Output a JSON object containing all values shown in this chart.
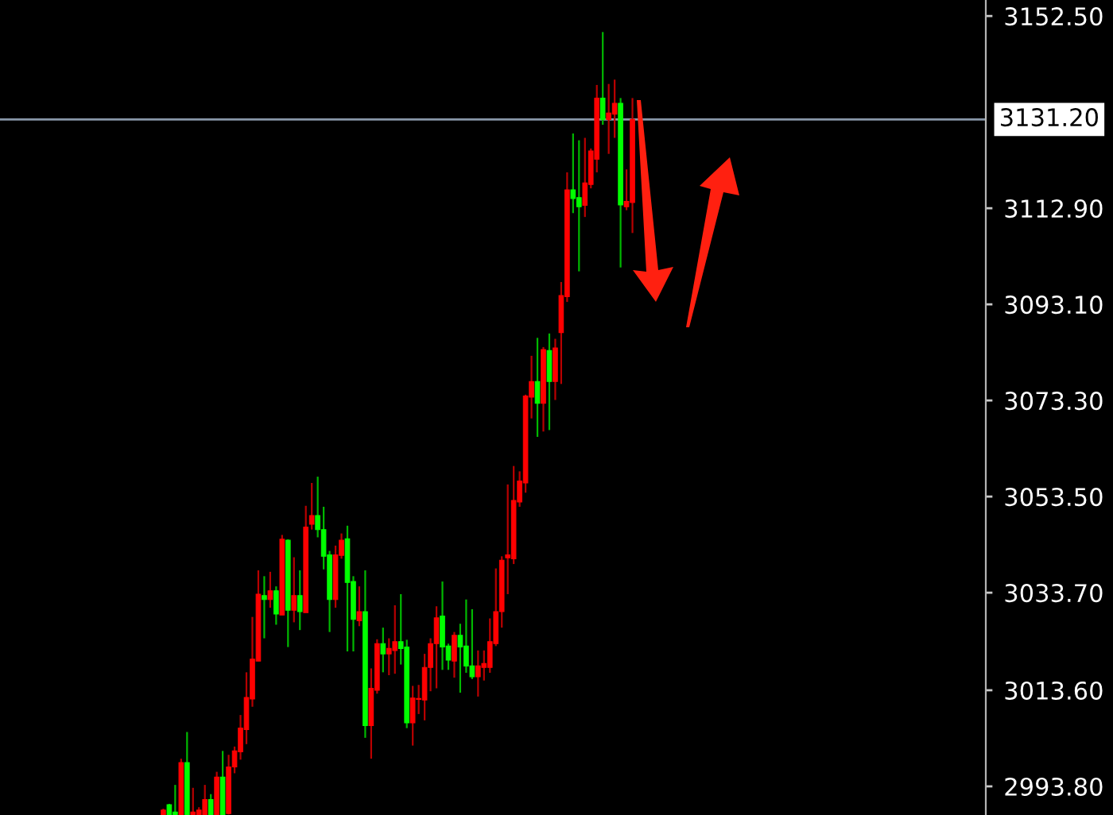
{
  "chart_data": {
    "type": "candlestick",
    "categories": [
      null,
      null,
      null,
      null,
      null,
      null,
      null,
      null,
      null,
      null,
      null,
      null,
      null,
      null,
      null,
      null,
      null,
      null,
      null,
      null,
      null,
      null,
      null,
      null,
      null,
      null,
      null,
      null,
      null,
      null,
      null,
      null,
      null,
      null,
      null,
      null,
      null,
      null,
      null,
      null,
      null,
      null,
      null,
      null,
      null,
      null,
      null,
      null,
      null,
      null,
      null,
      null,
      null,
      null,
      null,
      null,
      null,
      null,
      null,
      null,
      null,
      null,
      null,
      null,
      null,
      null,
      null,
      null,
      null,
      null,
      null,
      null,
      null,
      null,
      null,
      null,
      null,
      null,
      null,
      null,
      null,
      null,
      null,
      null,
      null,
      null,
      null,
      null,
      null,
      null,
      null,
      null,
      null,
      null,
      null,
      null,
      null,
      null,
      null,
      null,
      null,
      null,
      null,
      null,
      null,
      null,
      null,
      null,
      null,
      null,
      null,
      null,
      null,
      null,
      null,
      null,
      null,
      null,
      null,
      null,
      null,
      null,
      null,
      null,
      null,
      null,
      null,
      null,
      null,
      null,
      null,
      null,
      null,
      null,
      null,
      null,
      null,
      null,
      null,
      null,
      null,
      null,
      null,
      null,
      null,
      null,
      null,
      null,
      null,
      null,
      null,
      null,
      null,
      null,
      null,
      null,
      null,
      null,
      null,
      null,
      null,
      null,
      null,
      null,
      null,
      null
    ],
    "ohlc": [
      null,
      null,
      null,
      null,
      null,
      null,
      null,
      null,
      null,
      null,
      null,
      null,
      null,
      null,
      null,
      null,
      null,
      null,
      null,
      null,
      null,
      null,
      null,
      null,
      null,
      null,
      null,
      [
        2988.0,
        2989.2,
        2988.0,
        2988.9
      ],
      [
        2990.0,
        2990.2,
        2988.0,
        2988.0
      ],
      [
        2988.5,
        2994.1,
        2988.0,
        2988.0
      ],
      [
        2988.0,
        2999.5,
        2988.0,
        2998.7
      ],
      [
        2998.7,
        3005.0,
        2988.0,
        2988.0
      ],
      [
        2988.0,
        2993.5,
        2988.0,
        2988.5
      ],
      [
        2988.0,
        2989.5,
        2988.0,
        2988.9
      ],
      [
        2988.0,
        2994.1,
        2988.0,
        2991.1
      ],
      [
        2991.1,
        2992.2,
        2988.0,
        2988.0
      ],
      [
        2988.0,
        2996.8,
        2988.0,
        2995.7
      ],
      [
        2995.7,
        3001.1,
        2988.0,
        2988.0
      ],
      [
        2988.2,
        3000.3,
        2988.0,
        2997.8
      ],
      [
        2997.8,
        3002.0,
        2996.5,
        3001.1
      ],
      [
        3000.9,
        3008.5,
        2999.3,
        3005.8
      ],
      [
        3005.5,
        3017.3,
        3002.5,
        3012.1
      ],
      [
        3011.8,
        3028.7,
        3010.2,
        3020.0
      ],
      [
        3019.6,
        3038.3,
        3019.6,
        3033.4
      ],
      [
        3033.1,
        3037.1,
        3024.3,
        3032.3
      ],
      [
        3032.3,
        3038.0,
        3030.6,
        3034.1
      ],
      [
        3034.1,
        3035.0,
        3027.1,
        3029.3
      ],
      [
        3029.1,
        3045.6,
        3029.1,
        3044.7
      ],
      [
        3044.5,
        3044.7,
        3022.5,
        3030.1
      ],
      [
        3030.1,
        3041.0,
        3027.6,
        3033.1
      ],
      [
        3033.1,
        3038.3,
        3026.0,
        3029.8
      ],
      [
        3029.6,
        3051.6,
        3029.6,
        3047.2
      ],
      [
        3047.8,
        3056.3,
        3046.7,
        3049.6
      ],
      [
        3049.6,
        3057.6,
        3045.1,
        3046.7
      ],
      [
        3046.7,
        3051.4,
        3038.5,
        3041.2
      ],
      [
        3041.5,
        3042.3,
        3025.6,
        3032.3
      ],
      [
        3032.3,
        3043.4,
        3030.6,
        3041.5
      ],
      [
        3041.4,
        3045.9,
        3040.7,
        3044.5
      ],
      [
        3044.8,
        3047.5,
        3021.6,
        3035.8
      ],
      [
        3036.0,
        3037.1,
        3021.6,
        3028.2
      ],
      [
        3027.9,
        3035.0,
        3026.8,
        3029.8
      ],
      [
        3029.8,
        3038.3,
        3003.8,
        3006.3
      ],
      [
        3006.3,
        3018.1,
        2999.5,
        3014.0
      ],
      [
        3013.6,
        3024.1,
        3012.9,
        3023.2
      ],
      [
        3023.2,
        3026.5,
        3017.3,
        3021.1
      ],
      [
        3021.1,
        3024.3,
        3016.7,
        3022.2
      ],
      [
        3021.8,
        3031.1,
        3017.0,
        3023.6
      ],
      [
        3023.6,
        3033.4,
        3018.9,
        3022.2
      ],
      [
        3022.5,
        3024.0,
        3005.8,
        3006.9
      ],
      [
        3006.9,
        3014.5,
        3002.2,
        3012.0
      ],
      [
        3011.7,
        3014.7,
        3008.7,
        3011.9
      ],
      [
        3011.6,
        3021.1,
        3007.4,
        3018.3
      ],
      [
        3018.3,
        3024.3,
        3013.4,
        3023.2
      ],
      [
        3023.2,
        3030.9,
        3014.0,
        3028.5
      ],
      [
        3028.9,
        3036.0,
        3017.8,
        3022.5
      ],
      [
        3022.7,
        3023.2,
        3017.8,
        3019.8
      ],
      [
        3019.6,
        3025.6,
        3016.2,
        3024.9
      ],
      [
        3024.9,
        3027.3,
        3013.1,
        3022.5
      ],
      [
        3022.7,
        3032.3,
        3017.2,
        3018.6
      ],
      [
        3018.6,
        3030.3,
        3015.9,
        3016.4
      ],
      [
        3016.4,
        3021.8,
        3012.3,
        3018.6
      ],
      [
        3018.3,
        3021.8,
        3015.6,
        3019.1
      ],
      [
        3018.3,
        3028.4,
        3017.2,
        3023.6
      ],
      [
        3023.2,
        3038.7,
        3022.7,
        3029.8
      ],
      [
        3029.8,
        3041.2,
        3026.5,
        3040.4
      ],
      [
        3040.9,
        3056.0,
        3033.4,
        3041.5
      ],
      [
        3040.7,
        3059.8,
        3039.6,
        3052.7
      ],
      [
        3052.4,
        3058.7,
        3051.4,
        3056.7
      ],
      [
        3056.3,
        3074.5,
        3054.3,
        3074.2
      ],
      [
        3074.0,
        3082.5,
        3069.6,
        3077.2
      ],
      [
        3077.2,
        3086.2,
        3065.8,
        3072.7
      ],
      [
        3072.7,
        3084.3,
        3066.9,
        3083.8
      ],
      [
        3083.6,
        3087.1,
        3067.2,
        3077.2
      ],
      [
        3077.2,
        3086.0,
        3073.4,
        3084.1
      ],
      [
        3087.3,
        3097.7,
        3076.7,
        3094.9
      ],
      [
        3094.7,
        3120.3,
        3093.6,
        3116.7
      ],
      [
        3116.7,
        3128.3,
        3111.9,
        3114.9
      ],
      [
        3115.1,
        3126.9,
        3099.9,
        3113.2
      ],
      [
        3113.5,
        3127.4,
        3111.1,
        3118.1
      ],
      [
        3117.8,
        3125.2,
        3117.0,
        3124.7
      ],
      [
        3123.0,
        3138.3,
        3120.3,
        3135.6
      ],
      [
        3135.6,
        3149.2,
        3130.1,
        3131.2
      ],
      [
        3131.2,
        3138.5,
        3124.1,
        3132.5
      ],
      [
        3132.3,
        3139.4,
        3127.4,
        3134.5
      ],
      [
        3134.5,
        3135.6,
        3100.7,
        3113.6
      ],
      [
        3113.2,
        3120.9,
        3112.5,
        3114.3
      ],
      [
        3114.1,
        3135.6,
        3107.8,
        3131.2
      ],
      null,
      null,
      null,
      null,
      null,
      null,
      null,
      null,
      null,
      null,
      null,
      null,
      null,
      null,
      null,
      null,
      null,
      null,
      null,
      null,
      null,
      null,
      null,
      null,
      null,
      null,
      null,
      null,
      null,
      null,
      null,
      null,
      null,
      null,
      null,
      null,
      null,
      null,
      null,
      null,
      null,
      null,
      null,
      null,
      null,
      null,
      null,
      null,
      null,
      null,
      null,
      null,
      null,
      null,
      null,
      null,
      null,
      null,
      null
    ],
    "colors": [
      null,
      null,
      null,
      null,
      null,
      null,
      null,
      null,
      null,
      null,
      null,
      null,
      null,
      null,
      null,
      null,
      null,
      null,
      null,
      null,
      null,
      null,
      null,
      null,
      null,
      null,
      null,
      "#ff0000",
      "#00ff00",
      "#00ff00",
      "#ff0000",
      "#00ff00",
      "#ff0000",
      "#ff0000",
      "#ff0000",
      "#00ff00",
      "#ff0000",
      "#00ff00",
      "#ff0000",
      "#ff0000",
      "#ff0000",
      "#ff0000",
      "#ff0000",
      "#ff0000",
      "#00ff00",
      "#ff0000",
      "#00ff00",
      "#ff0000",
      "#00ff00",
      "#ff0000",
      "#00ff00",
      "#ff0000",
      "#ff0000",
      "#00ff00",
      "#00ff00",
      "#00ff00",
      "#ff0000",
      "#ff0000",
      "#00ff00",
      "#00ff00",
      "#ff0000",
      "#00ff00",
      "#ff0000",
      "#ff0000",
      "#00ff00",
      "#ff0000",
      "#ff0000",
      "#00ff00",
      "#00ff00",
      "#ff0000",
      "#ff0000",
      "#ff0000",
      "#ff0000",
      "#ff0000",
      "#00ff00",
      "#00ff00",
      "#ff0000",
      "#00ff00",
      "#00ff00",
      "#00ff00",
      "#ff0000",
      "#ff0000",
      "#ff0000",
      "#ff0000",
      "#ff0000",
      "#ff0000",
      "#ff0000",
      "#ff0000",
      "#ff0000",
      "#ff0000",
      "#00ff00",
      "#ff0000",
      "#00ff00",
      "#ff0000",
      "#ff0000",
      "#ff0000",
      "#00ff00",
      "#00ff00",
      "#ff0000",
      "#ff0000",
      "#ff0000",
      "#00ff00",
      "#ff0000",
      "#ff0000",
      "#00ff00",
      "#ff0000",
      "#ff0000",
      null,
      null,
      null,
      null,
      null,
      null,
      null,
      null,
      null,
      null,
      null,
      null,
      null,
      null,
      null,
      null,
      null,
      null,
      null,
      null,
      null,
      null,
      null,
      null,
      null,
      null,
      null,
      null,
      null,
      null,
      null,
      null,
      null,
      null,
      null,
      null,
      null,
      null,
      null,
      null,
      null,
      null,
      null,
      null,
      null,
      null,
      null,
      null,
      null,
      null,
      null,
      null,
      null,
      null,
      null,
      null,
      null,
      null,
      null
    ],
    "ylim": [
      2987.9,
      3155.8
    ],
    "yticks": [
      {
        "value": 3152.5,
        "label": "3152.50"
      },
      {
        "value": 3112.9,
        "label": "3112.90"
      },
      {
        "value": 3093.1,
        "label": "3093.10"
      },
      {
        "value": 3073.3,
        "label": "3073.30"
      },
      {
        "value": 3053.5,
        "label": "3053.50"
      },
      {
        "value": 3033.7,
        "label": "3033.70"
      },
      {
        "value": 3013.6,
        "label": "3013.60"
      },
      {
        "value": 2993.8,
        "label": "2993.80"
      }
    ],
    "ref_lines": [
      {
        "axis": "y",
        "value": 3131.2,
        "label": "3131.20",
        "color": "#8897a8"
      }
    ],
    "tick_labels": "y"
  }
}
